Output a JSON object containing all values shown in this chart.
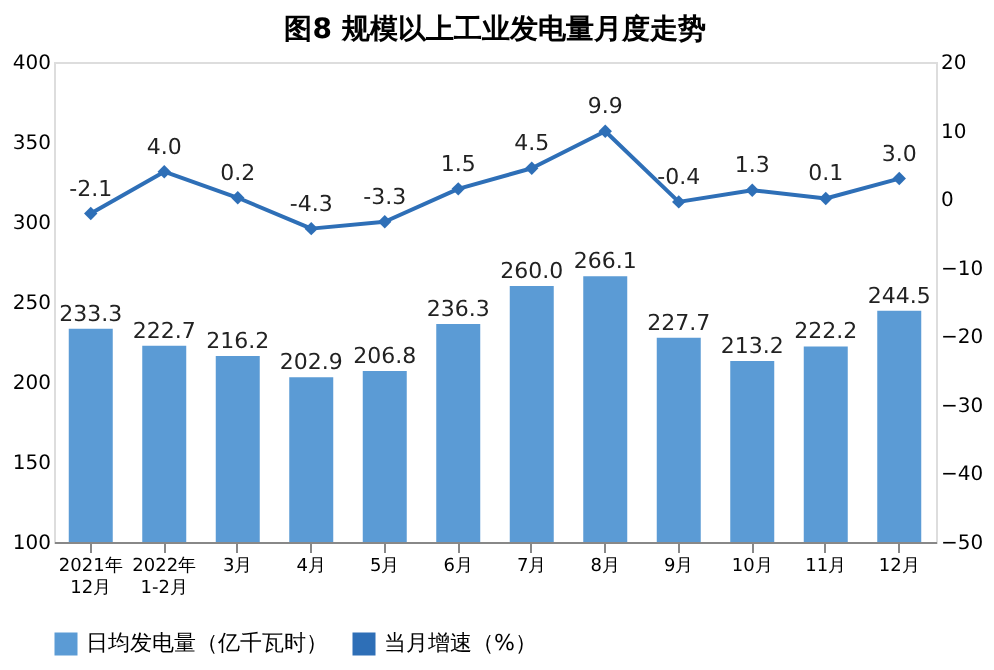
{
  "chart_data": {
    "type": "bar",
    "title": "图8  规模以上工业发电量月度走势",
    "categories": [
      "2021年\n12月",
      "2022年\n1-2月",
      "3月",
      "4月",
      "5月",
      "6月",
      "7月",
      "8月",
      "9月",
      "10月",
      "11月",
      "12月"
    ],
    "series": [
      {
        "name": "日均发电量（亿千瓦时）",
        "color": "#5b9bd5",
        "values": [
          233.3,
          222.7,
          216.2,
          202.9,
          206.8,
          236.3,
          260.0,
          266.1,
          227.7,
          213.2,
          222.2,
          244.5
        ],
        "value_labels": [
          "233.3",
          "222.7",
          "216.2",
          "202.9",
          "206.8",
          "236.3",
          "260.0",
          "266.1",
          "227.7",
          "213.2",
          "222.2",
          "244.5"
        ]
      },
      {
        "name": "当月增速（%）",
        "type": "line",
        "axis": "y2",
        "color": "#2e6fb7",
        "marker": "diamond",
        "line_style": "solid",
        "values": [
          -2.1,
          4.0,
          0.2,
          -4.3,
          -3.3,
          1.5,
          4.5,
          9.9,
          -0.4,
          1.3,
          0.1,
          3.0
        ],
        "value_labels": [
          "-2.1",
          "4.0",
          "0.2",
          "-4.3",
          "-3.3",
          "1.5",
          "4.5",
          "9.9",
          "-0.4",
          "1.3",
          "0.1",
          "3.0"
        ]
      }
    ],
    "ylim": [
      100,
      400
    ],
    "yticks": [
      100,
      150,
      200,
      250,
      300,
      350,
      400
    ],
    "y2lim": [
      -50,
      20
    ],
    "y2ticks": [
      -50,
      -40,
      -30,
      -20,
      -10,
      0,
      10,
      20
    ],
    "legend": "bottom",
    "grid": false
  }
}
